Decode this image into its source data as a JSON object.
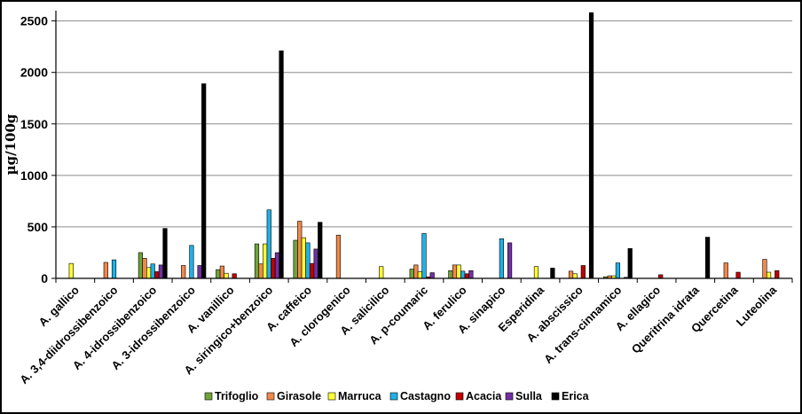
{
  "chart_data": {
    "type": "bar",
    "ylabel": "µg/100g",
    "ylim": [
      0,
      2600
    ],
    "yticks": [
      0,
      500,
      1000,
      1500,
      2000,
      2500
    ],
    "grid": true,
    "legend_position": "bottom",
    "categories": [
      "A. gallico",
      "A. 3,4-diidrossibenzoico",
      "A. 4-idrossibenzoico",
      "A. 3-idrossibenzoico",
      "A. vanillico",
      "A. siringico+benzoico",
      "A. caffeico",
      "A. clorogenico",
      "A. salicilico",
      "A. p-coumaric",
      "A. ferulico",
      "A. sinapico",
      "Esperidina",
      "A. abscissico",
      "A. trans-cinnamico",
      "A. ellagico",
      "Queritrina idrata",
      "Quercetina",
      "Luteolina"
    ],
    "series": [
      {
        "name": "Trifoglio",
        "color": "#70a33a",
        "values": [
          0,
          0,
          250,
          0,
          85,
          335,
          370,
          0,
          0,
          90,
          75,
          0,
          0,
          0,
          15,
          0,
          0,
          0,
          0
        ]
      },
      {
        "name": "Girasole",
        "color": "#f0884a",
        "values": [
          0,
          155,
          195,
          125,
          120,
          140,
          555,
          420,
          0,
          130,
          130,
          0,
          0,
          70,
          25,
          0,
          0,
          150,
          185
        ]
      },
      {
        "name": "Marruca",
        "color": "#ffff33",
        "values": [
          145,
          0,
          105,
          0,
          50,
          335,
          395,
          0,
          115,
          65,
          130,
          0,
          115,
          45,
          25,
          0,
          0,
          0,
          60
        ]
      },
      {
        "name": "Castagno",
        "color": "#1fb0e8",
        "values": [
          0,
          180,
          140,
          320,
          0,
          665,
          345,
          0,
          0,
          435,
          70,
          385,
          0,
          0,
          150,
          0,
          0,
          0,
          0
        ]
      },
      {
        "name": "Acacia",
        "color": "#c00000",
        "values": [
          0,
          0,
          65,
          0,
          45,
          195,
          145,
          0,
          0,
          15,
          45,
          0,
          0,
          125,
          0,
          35,
          0,
          60,
          75
        ]
      },
      {
        "name": "Sulla",
        "color": "#7030a0",
        "values": [
          0,
          0,
          130,
          125,
          0,
          250,
          285,
          0,
          0,
          55,
          75,
          345,
          0,
          0,
          10,
          0,
          0,
          0,
          0
        ]
      },
      {
        "name": "Erica",
        "color": "#000000",
        "values": [
          0,
          0,
          485,
          1890,
          0,
          2210,
          545,
          0,
          0,
          0,
          0,
          0,
          100,
          2580,
          290,
          0,
          400,
          0,
          0
        ]
      }
    ]
  }
}
